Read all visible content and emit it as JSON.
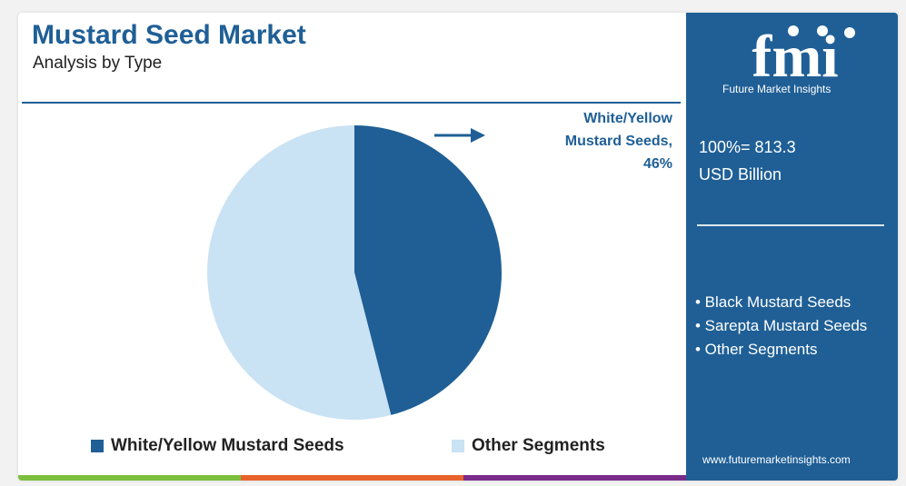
{
  "header": {
    "title": "Mustard Seed Market",
    "subtitle": "Analysis by Type"
  },
  "callout": {
    "lines": [
      "White/Yellow",
      "Mustard Seeds,",
      "46%"
    ]
  },
  "legend": {
    "items": [
      {
        "label": "White/Yellow Mustard Seeds",
        "color": "#1f5f96"
      },
      {
        "label": "Other Segments",
        "color": "#c9e2f4"
      }
    ]
  },
  "panel": {
    "logo_text": "fmi",
    "logo_tagline": "Future Market Insights",
    "total_line1": "100%= 813.3",
    "total_line2": "USD Billion",
    "bullets": [
      "• Black Mustard Seeds",
      "• Sarepta Mustard Seeds",
      "• Other Segments"
    ],
    "website": "www.futuremarketinsights.com"
  },
  "colors": {
    "brand_blue": "#1f5f96",
    "light_blue": "#c9e2f4",
    "bar_green": "#7cbf3e",
    "bar_orange": "#e8622c",
    "bar_purple": "#7a2c8a"
  },
  "chart_data": {
    "type": "pie",
    "title": "Mustard Seed Market",
    "subtitle": "Analysis by Type",
    "slices": [
      {
        "label": "White/Yellow Mustard Seeds",
        "value": 46,
        "color": "#1f5f96"
      },
      {
        "label": "Other Segments",
        "value": 54,
        "color": "#c9e2f4"
      }
    ],
    "legend": "bottom"
  }
}
